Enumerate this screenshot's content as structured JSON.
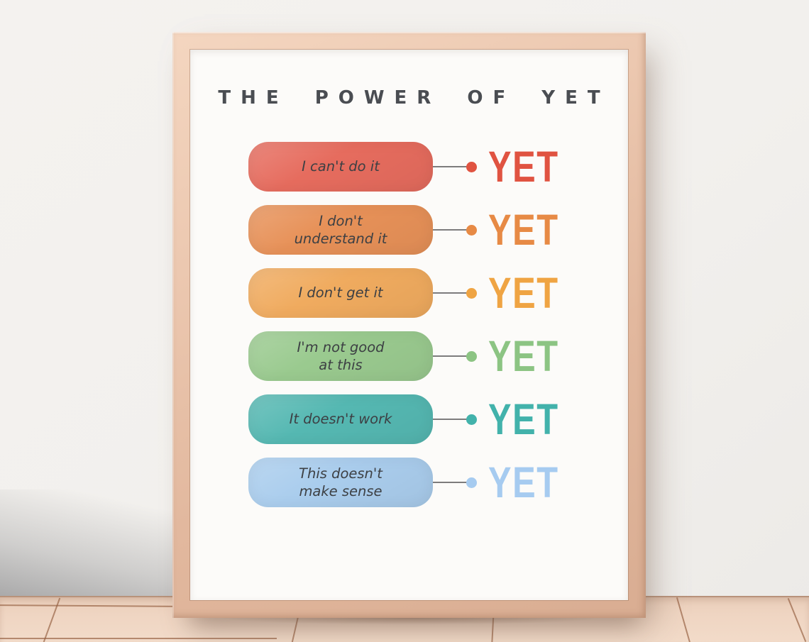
{
  "poster": {
    "title": "THE POWER OF YET",
    "title_color": "#4a4d52",
    "phrase_text_color": "#3d4044",
    "background_color": "#fcfbf9",
    "rows": [
      {
        "phrase": "I can't do it",
        "yet_label": "YET",
        "pill_color": "#e66c5e",
        "accent_color": "#e05341"
      },
      {
        "phrase": "I don't\nunderstand it",
        "yet_label": "YET",
        "pill_color": "#e79158",
        "accent_color": "#e78a45"
      },
      {
        "phrase": "I don't get it",
        "yet_label": "YET",
        "pill_color": "#f0ab5f",
        "accent_color": "#efa443"
      },
      {
        "phrase": "I'm not good\nat this",
        "yet_label": "YET",
        "pill_color": "#9aca8f",
        "accent_color": "#8cc483"
      },
      {
        "phrase": "It doesn't work",
        "yet_label": "YET",
        "pill_color": "#55b8b2",
        "accent_color": "#42b2ab"
      },
      {
        "phrase": "This doesn't\nmake sense",
        "yet_label": "YET",
        "pill_color": "#aacded",
        "accent_color": "#a6cbf0"
      }
    ]
  },
  "scene": {
    "wall_color": "#f2f0ed",
    "frame_wood_color": "#e8c3ab",
    "floor_color": "#efd5c2",
    "floor_seam_color": "#925c3d",
    "connector_line_color": "#5c5c5e"
  }
}
